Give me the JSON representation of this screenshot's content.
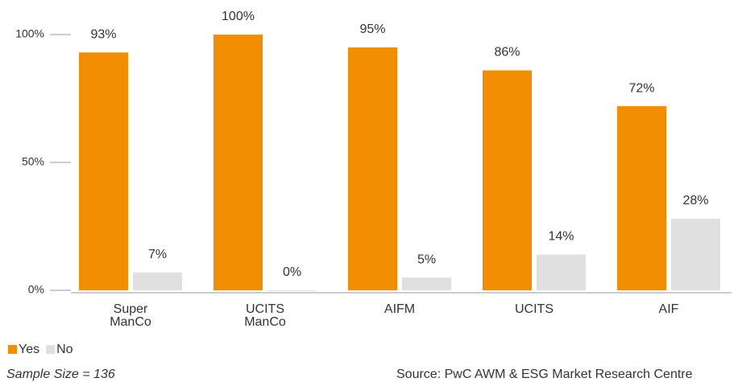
{
  "chart_data": {
    "type": "bar",
    "categories": [
      "Super ManCo",
      "UCITS ManCo",
      "AIFM",
      "UCITS",
      "AIF"
    ],
    "series": [
      {
        "name": "Yes",
        "color": "#f28c00",
        "values": [
          93,
          100,
          95,
          86,
          72
        ],
        "value_labels": [
          "93%",
          "100%",
          "95%",
          "86%",
          "72%"
        ]
      },
      {
        "name": "No",
        "color": "#e0e0e0",
        "values": [
          7,
          0,
          5,
          14,
          28
        ],
        "value_labels": [
          "7%",
          "0%",
          "5%",
          "14%",
          "28%"
        ]
      }
    ],
    "ylim": [
      0,
      100
    ],
    "yticks": [
      {
        "value": 0,
        "label": "0%"
      },
      {
        "value": 50,
        "label": "50%"
      },
      {
        "value": 100,
        "label": "100%"
      }
    ],
    "legend": "bottom-left",
    "annotations": [
      "Sample Size = 136",
      "Source: PwC AWM & ESG Market Research Centre"
    ]
  }
}
